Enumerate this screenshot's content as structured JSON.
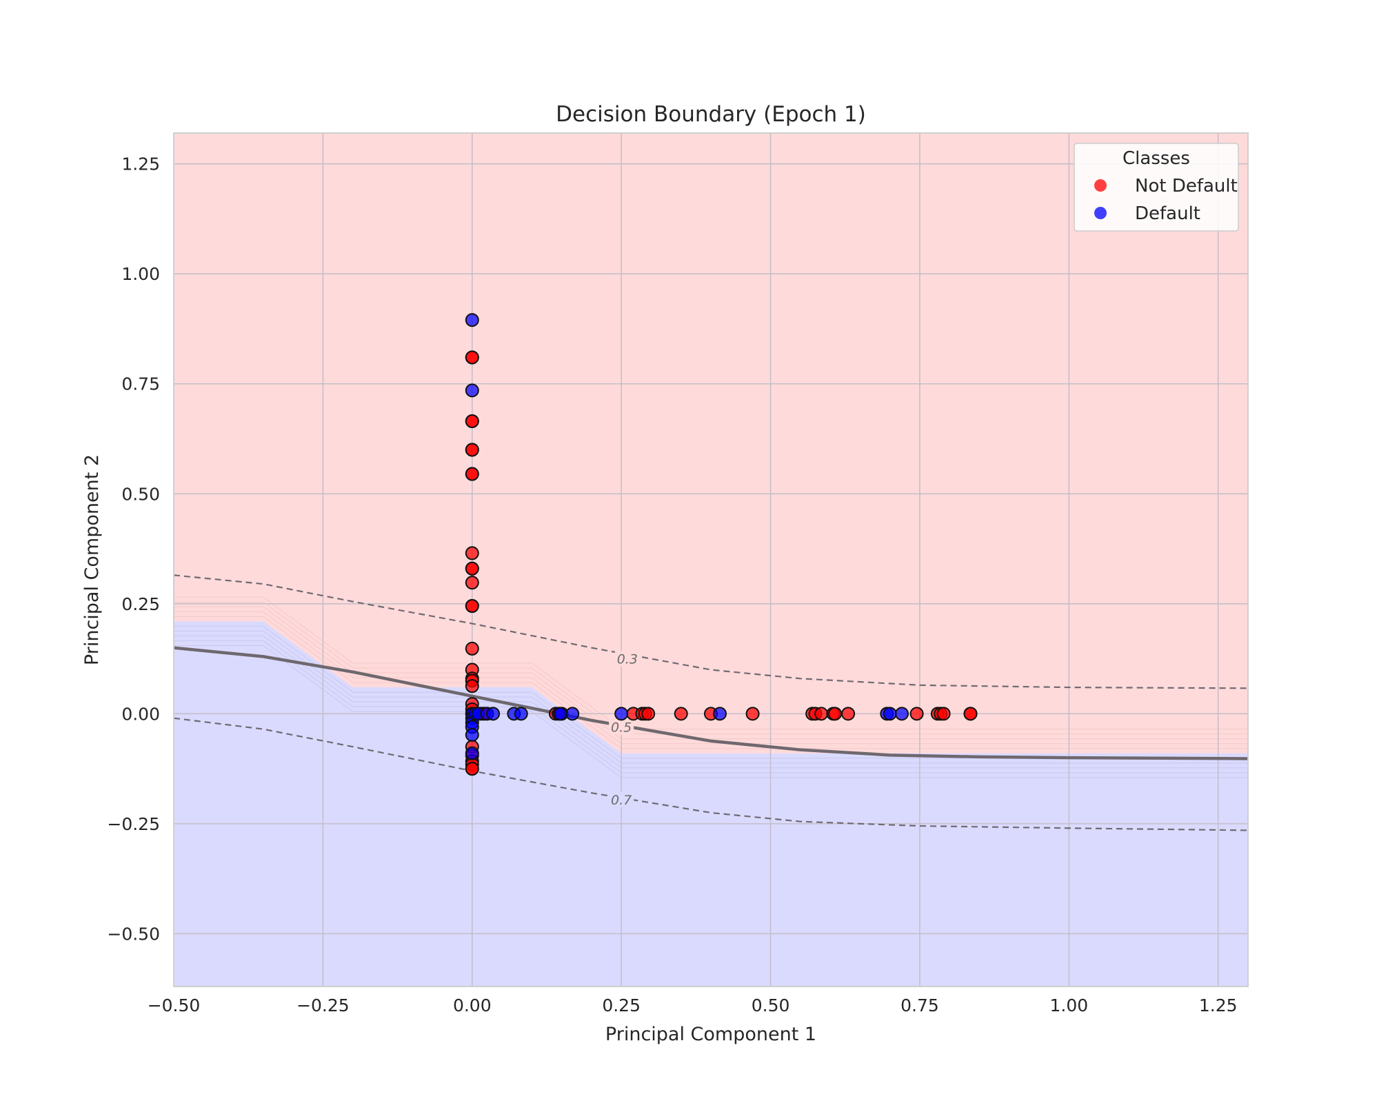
{
  "chart_data": {
    "type": "scatter",
    "title": "Decision Boundary (Epoch 1)",
    "xlabel": "Principal Component 1",
    "ylabel": "Principal Component 2",
    "xlim": [
      -0.5,
      1.3
    ],
    "ylim": [
      -0.62,
      1.32
    ],
    "xticks": [
      -0.5,
      -0.25,
      0.0,
      0.25,
      0.5,
      0.75,
      1.0,
      1.25
    ],
    "yticks": [
      -0.5,
      -0.25,
      0.0,
      0.25,
      0.5,
      0.75,
      1.0,
      1.25
    ],
    "xtick_labels": [
      "−0.50",
      "−0.25",
      "0.00",
      "0.25",
      "0.50",
      "0.75",
      "1.00",
      "1.25"
    ],
    "ytick_labels": [
      "−0.50",
      "−0.25",
      "0.00",
      "0.25",
      "0.50",
      "0.75",
      "1.00",
      "1.25"
    ],
    "grid": true,
    "legend": {
      "title": "Classes",
      "position": "top-right"
    },
    "regions": {
      "upper_color": "#ffdada",
      "lower_color": "#dadaff",
      "boundary": [
        [
          -0.5,
          0.21
        ],
        [
          -0.35,
          0.21
        ],
        [
          -0.2,
          0.06
        ],
        [
          0.1,
          0.06
        ],
        [
          0.25,
          -0.09
        ],
        [
          1.3,
          -0.09
        ]
      ]
    },
    "contours": [
      {
        "level": "0.3",
        "style": "dashed",
        "label_at": [
          0.26,
          0.125
        ],
        "points": [
          [
            -0.5,
            0.315
          ],
          [
            -0.35,
            0.295
          ],
          [
            -0.2,
            0.255
          ],
          [
            0.0,
            0.205
          ],
          [
            0.2,
            0.15
          ],
          [
            0.4,
            0.1
          ],
          [
            0.55,
            0.08
          ],
          [
            0.75,
            0.065
          ],
          [
            1.0,
            0.06
          ],
          [
            1.3,
            0.058
          ]
        ]
      },
      {
        "level": "0.5",
        "style": "solid",
        "label_at": [
          0.25,
          -0.03
        ],
        "points": [
          [
            -0.5,
            0.15
          ],
          [
            -0.35,
            0.13
          ],
          [
            -0.2,
            0.095
          ],
          [
            0.0,
            0.04
          ],
          [
            0.2,
            -0.015
          ],
          [
            0.4,
            -0.062
          ],
          [
            0.55,
            -0.082
          ],
          [
            0.7,
            -0.094
          ],
          [
            0.85,
            -0.098
          ],
          [
            1.0,
            -0.1
          ],
          [
            1.3,
            -0.102
          ]
        ]
      },
      {
        "level": "0.7",
        "style": "dashed",
        "label_at": [
          0.25,
          -0.195
        ],
        "points": [
          [
            -0.5,
            -0.01
          ],
          [
            -0.35,
            -0.035
          ],
          [
            -0.2,
            -0.075
          ],
          [
            0.0,
            -0.13
          ],
          [
            0.2,
            -0.18
          ],
          [
            0.4,
            -0.225
          ],
          [
            0.55,
            -0.245
          ],
          [
            0.75,
            -0.255
          ],
          [
            1.0,
            -0.26
          ],
          [
            1.3,
            -0.265
          ]
        ]
      }
    ],
    "series": [
      {
        "name": "Not Default",
        "color": "#ff0000",
        "points": [
          [
            0.0,
            0.81
          ],
          [
            0.0,
            0.81
          ],
          [
            0.0,
            0.665
          ],
          [
            0.0,
            0.665
          ],
          [
            0.0,
            0.6
          ],
          [
            0.0,
            0.6
          ],
          [
            0.0,
            0.545
          ],
          [
            0.0,
            0.545
          ],
          [
            0.0,
            0.365
          ],
          [
            0.0,
            0.33
          ],
          [
            0.0,
            0.33
          ],
          [
            0.0,
            0.298
          ],
          [
            0.0,
            0.245
          ],
          [
            0.0,
            0.245
          ],
          [
            0.0,
            0.148
          ],
          [
            0.0,
            0.1
          ],
          [
            0.0,
            0.08
          ],
          [
            0.0,
            0.075
          ],
          [
            0.0,
            0.063
          ],
          [
            0.0,
            0.022
          ],
          [
            0.0,
            0.01
          ],
          [
            0.0,
            -0.075
          ],
          [
            0.0,
            -0.095
          ],
          [
            0.0,
            -0.108
          ],
          [
            0.0,
            -0.115
          ],
          [
            0.0,
            -0.125
          ],
          [
            0.0,
            -0.125
          ],
          [
            0.01,
            0.0
          ],
          [
            0.015,
            0.0
          ],
          [
            0.02,
            0.0
          ],
          [
            0.14,
            0.0
          ],
          [
            0.15,
            0.0
          ],
          [
            0.27,
            0.0
          ],
          [
            0.285,
            0.0
          ],
          [
            0.29,
            0.0
          ],
          [
            0.295,
            0.0
          ],
          [
            0.35,
            0.0
          ],
          [
            0.4,
            0.0
          ],
          [
            0.47,
            0.0
          ],
          [
            0.57,
            0.0
          ],
          [
            0.575,
            0.0
          ],
          [
            0.585,
            0.0
          ],
          [
            0.605,
            0.0
          ],
          [
            0.608,
            0.0
          ],
          [
            0.63,
            0.0
          ],
          [
            0.745,
            0.0
          ],
          [
            0.78,
            0.0
          ],
          [
            0.785,
            0.0
          ],
          [
            0.79,
            0.0
          ],
          [
            0.835,
            0.0
          ],
          [
            0.835,
            0.0
          ]
        ]
      },
      {
        "name": "Default",
        "color": "#0000ff",
        "points": [
          [
            0.0,
            0.895
          ],
          [
            0.0,
            0.735
          ],
          [
            0.0,
            0.0
          ],
          [
            0.0,
            0.0
          ],
          [
            0.0,
            -0.01
          ],
          [
            0.0,
            -0.02
          ],
          [
            0.0,
            -0.03
          ],
          [
            0.0,
            -0.048
          ],
          [
            0.0,
            -0.09
          ],
          [
            0.005,
            0.0
          ],
          [
            0.01,
            0.0
          ],
          [
            0.025,
            0.0
          ],
          [
            0.035,
            0.0
          ],
          [
            0.07,
            0.0
          ],
          [
            0.082,
            0.0
          ],
          [
            0.145,
            0.0
          ],
          [
            0.148,
            0.0
          ],
          [
            0.168,
            0.0
          ],
          [
            0.25,
            0.0
          ],
          [
            0.415,
            0.0
          ],
          [
            0.695,
            0.0
          ],
          [
            0.7,
            0.0
          ],
          [
            0.72,
            0.0
          ]
        ]
      }
    ]
  }
}
